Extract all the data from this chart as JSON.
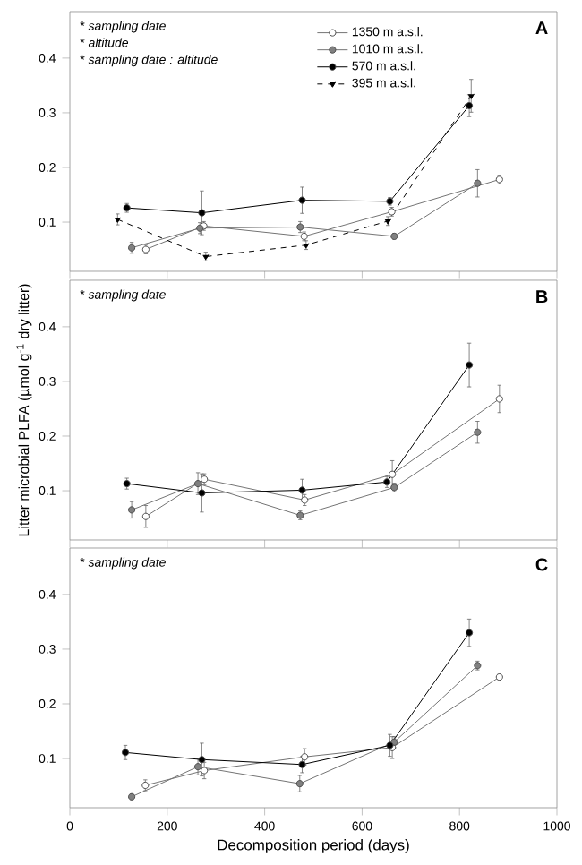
{
  "chart_data": [
    {
      "type": "line",
      "title": "A",
      "tick_labels": "y",
      "legend": "top",
      "xlim": [
        0,
        1000
      ],
      "xticks": [
        0,
        200,
        400,
        600,
        800,
        1000
      ],
      "ylim": [
        0.01,
        0.485
      ],
      "yticks": [
        0.1,
        0.2,
        0.3,
        0.4
      ],
      "annotations": [
        "* *sampling date*",
        "* *altitude*",
        "* *sampling date : altitude*"
      ],
      "series": [
        {
          "name": "1350 m a.s.l.",
          "color": "#ffffff",
          "marker": "circle",
          "line_style": "solid",
          "x": [
            156,
            275,
            481,
            661,
            882
          ],
          "values": [
            0.05,
            0.093,
            0.074,
            0.119,
            0.178
          ],
          "errors": [
            0.008,
            0.008,
            0.008,
            0.008,
            0.008
          ]
        },
        {
          "name": "1010 m a.s.l.",
          "color": "#808080",
          "marker": "circle",
          "line_style": "solid",
          "x": [
            127,
            267,
            473,
            666,
            837
          ],
          "values": [
            0.053,
            0.089,
            0.091,
            0.074,
            0.171
          ],
          "errors": [
            0.01,
            0.01,
            0.01,
            0.005,
            0.025
          ]
        },
        {
          "name": "570 m a.s.l.",
          "color": "#000000",
          "marker": "circle",
          "line_style": "solid",
          "x": [
            117,
            271,
            477,
            657,
            820
          ],
          "values": [
            0.126,
            0.117,
            0.14,
            0.138,
            0.313
          ],
          "errors": [
            0.008,
            0.04,
            0.024,
            0.007,
            0.02
          ]
        },
        {
          "name": "395 m a.s.l.",
          "color": "#000000",
          "marker": "triangle",
          "line_style": "dashed",
          "x": [
            98,
            279,
            485,
            653,
            824
          ],
          "values": [
            0.105,
            0.037,
            0.058,
            0.102,
            0.331
          ],
          "errors": [
            0.01,
            0.008,
            0.008,
            0.008,
            0.03
          ]
        }
      ]
    },
    {
      "type": "line",
      "title": "B",
      "tick_labels": "y",
      "ylabel": "Litter microbial PLFA (µmol g$^{-1}$ dry litter)",
      "xlim": [
        0,
        1000
      ],
      "xticks": [
        0,
        200,
        400,
        600,
        800,
        1000
      ],
      "ylim": [
        0.01,
        0.485
      ],
      "yticks": [
        0.1,
        0.2,
        0.3,
        0.4
      ],
      "annotations": [
        "* *sampling date*"
      ],
      "series": [
        {
          "color": "#ffffff",
          "marker": "circle",
          "line_style": "solid",
          "x": [
            156,
            276,
            482,
            662,
            882
          ],
          "values": [
            0.053,
            0.121,
            0.083,
            0.13,
            0.268
          ],
          "errors": [
            0.02,
            0.01,
            0.01,
            0.025,
            0.025
          ]
        },
        {
          "color": "#808080",
          "marker": "circle",
          "line_style": "solid",
          "x": [
            127,
            263,
            473,
            666,
            837
          ],
          "values": [
            0.065,
            0.113,
            0.055,
            0.106,
            0.207
          ],
          "errors": [
            0.015,
            0.02,
            0.008,
            0.008,
            0.02
          ]
        },
        {
          "color": "#000000",
          "marker": "circle",
          "line_style": "solid",
          "x": [
            117,
            271,
            477,
            651,
            820
          ],
          "values": [
            0.113,
            0.096,
            0.101,
            0.116,
            0.33
          ],
          "errors": [
            0.01,
            0.035,
            0.02,
            0.01,
            0.04
          ]
        }
      ]
    },
    {
      "type": "line",
      "title": "C",
      "xlabel": "Decomposition period (days)",
      "xlim": [
        0,
        1000
      ],
      "xticks": [
        0,
        200,
        400,
        600,
        800,
        1000
      ],
      "ylim": [
        0.01,
        0.485
      ],
      "yticks": [
        0.1,
        0.2,
        0.3,
        0.4
      ],
      "annotations": [
        "* *sampling date*"
      ],
      "series": [
        {
          "color": "#ffffff",
          "marker": "circle",
          "line_style": "solid",
          "x": [
            155,
            276,
            482,
            662,
            882
          ],
          "values": [
            0.051,
            0.078,
            0.103,
            0.12,
            0.249
          ],
          "errors": [
            0.01,
            0.015,
            0.015,
            0.02,
            0.005
          ]
        },
        {
          "color": "#808080",
          "marker": "circle",
          "line_style": "solid",
          "x": [
            127,
            263,
            472,
            666,
            837
          ],
          "values": [
            0.03,
            0.085,
            0.054,
            0.13,
            0.27
          ],
          "errors": [
            0.005,
            0.015,
            0.015,
            0.01,
            0.008
          ]
        },
        {
          "color": "#000000",
          "marker": "circle",
          "line_style": "solid",
          "x": [
            114,
            271,
            477,
            657,
            820
          ],
          "values": [
            0.111,
            0.098,
            0.089,
            0.124,
            0.33
          ],
          "errors": [
            0.013,
            0.03,
            0.015,
            0.02,
            0.025
          ]
        }
      ]
    }
  ]
}
